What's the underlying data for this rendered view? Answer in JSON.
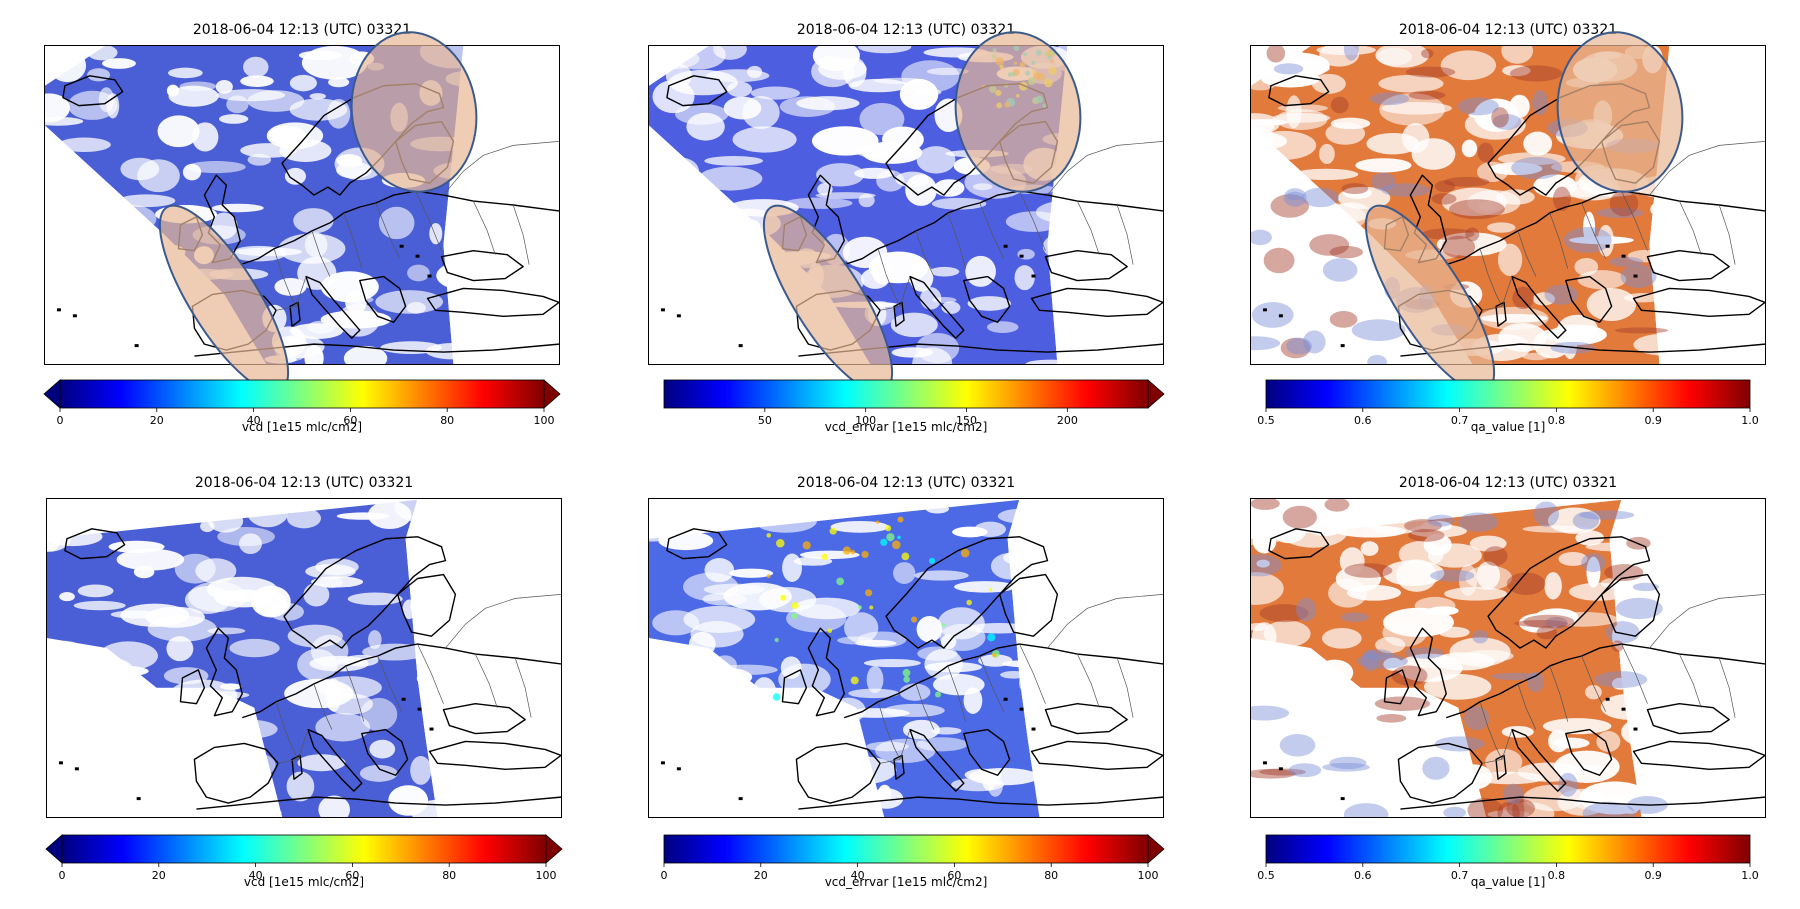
{
  "title_common": "2018-06-04 12:13 (UTC) 03321",
  "panels": [
    {
      "id": "top-vcd",
      "title": "2018-06-04 12:13 (UTC) 03321",
      "colorbar": {
        "label": "vcd [1e15 mlc/cm2]",
        "ticks": [
          "0",
          "20",
          "40",
          "60",
          "80",
          "100"
        ],
        "tick_values": [
          0,
          20,
          40,
          60,
          80,
          100
        ],
        "range": [
          0,
          100
        ],
        "extend": "both",
        "colormap": "jet"
      },
      "fill_color": "#4a5fd6",
      "has_ellipses": true
    },
    {
      "id": "top-vcd-errvar",
      "title": "2018-06-04 12:13 (UTC) 03321",
      "colorbar": {
        "label": "vcd_errvar [1e15 mlc/cm2]",
        "ticks": [
          "50",
          "100",
          "150",
          "200"
        ],
        "tick_values": [
          50,
          100,
          150,
          200
        ],
        "range": [
          0,
          240
        ],
        "extend": "max",
        "colormap": "jet"
      },
      "fill_color": "#4d5ee0",
      "has_ellipses": true
    },
    {
      "id": "top-qa-value",
      "title": "2018-06-04 12:13 (UTC) 03321",
      "colorbar": {
        "label": "qa_value [1]",
        "ticks": [
          "0.5",
          "0.6",
          "0.7",
          "0.8",
          "0.9",
          "1.0"
        ],
        "tick_values": [
          0.5,
          0.6,
          0.7,
          0.8,
          0.9,
          1.0
        ],
        "range": [
          0.5,
          1.0
        ],
        "extend": "neither",
        "colormap": "jet"
      },
      "fill_color": "#e27a3c",
      "has_ellipses": true
    },
    {
      "id": "bottom-vcd",
      "title": "2018-06-04 12:13 (UTC) 03321",
      "colorbar": {
        "label": "vcd [1e15 mlc/cm2]",
        "ticks": [
          "0",
          "20",
          "40",
          "60",
          "80",
          "100"
        ],
        "tick_values": [
          0,
          20,
          40,
          60,
          80,
          100
        ],
        "range": [
          0,
          100
        ],
        "extend": "both",
        "colormap": "jet"
      },
      "fill_color": "#4a5fd6",
      "has_ellipses": false
    },
    {
      "id": "bottom-vcd-errvar",
      "title": "2018-06-04 12:13 (UTC) 03321",
      "colorbar": {
        "label": "vcd_errvar [1e15 mlc/cm2]",
        "ticks": [
          "0",
          "20",
          "40",
          "60",
          "80",
          "100"
        ],
        "tick_values": [
          0,
          20,
          40,
          60,
          80,
          100
        ],
        "range": [
          0,
          100
        ],
        "extend": "max",
        "colormap": "jet"
      },
      "fill_color": "#4d6ae6",
      "has_ellipses": false
    },
    {
      "id": "bottom-qa-value",
      "title": "2018-06-04 12:13 (UTC) 03321",
      "colorbar": {
        "label": "qa_value [1]",
        "ticks": [
          "0.5",
          "0.6",
          "0.7",
          "0.8",
          "0.9",
          "1.0"
        ],
        "tick_values": [
          0.5,
          0.6,
          0.7,
          0.8,
          0.9,
          1.0
        ],
        "range": [
          0.5,
          1.0
        ],
        "extend": "neither",
        "colormap": "jet"
      },
      "fill_color": "#e27a3c",
      "has_ellipses": false
    }
  ],
  "colors": {
    "cloud_gaps": "#ffffff",
    "coastline": "#000000",
    "ellipse_fill": "#e8b896",
    "ellipse_stroke": "#3b5a8c",
    "jet_stops": [
      "#00007f",
      "#0000ff",
      "#007fff",
      "#00ffff",
      "#7fff7f",
      "#ffff00",
      "#ff7f00",
      "#ff0000",
      "#7f0000"
    ]
  }
}
